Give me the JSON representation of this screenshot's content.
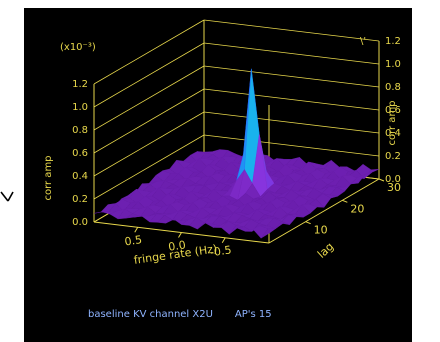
{
  "colors": {
    "background": "#000000",
    "axis": "#e8d84c",
    "caption": "#8fb4ff",
    "surface_low": "#6a1fa0",
    "surface_peak": "#ff1a1a"
  },
  "caption": {
    "baseline": "baseline KV channel X2U",
    "aps": "AP's   15"
  },
  "chart_data": {
    "type": "surface",
    "title": "",
    "scale_note": "(x10⁻³)",
    "zlabel": "corr amp",
    "xlabel": "fringe rate (Hz)",
    "ylabel": "lag",
    "zlim": [
      0,
      1.2
    ],
    "xlim": [
      1.0,
      -1.0
    ],
    "ylim": [
      0,
      30
    ],
    "z_ticks": [
      "0.0",
      "0.2",
      "0.4",
      "0.6",
      "0.8",
      "1.0",
      "1.2"
    ],
    "x_ticks": [
      "0.5",
      "0.0",
      "-0.5"
    ],
    "y_ticks": [
      "10",
      "20",
      "30"
    ],
    "peak": {
      "fringe_rate": -0.1,
      "lag": 17,
      "corr_amp": 1.15
    },
    "noise_floor": 0.1
  }
}
